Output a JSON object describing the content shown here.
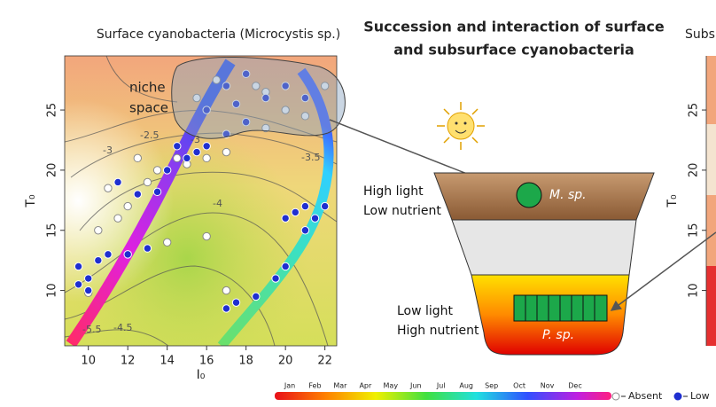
{
  "chart_data": [
    {
      "type": "scatter",
      "title": "Surface cyanobacteria (Microcystis sp.)",
      "x_label": "I₀",
      "y_label": "T₀",
      "xlim": [
        8.8,
        22.6
      ],
      "ylim": [
        5.4,
        29.5
      ],
      "xticks": [
        10,
        12,
        14,
        16,
        18,
        20,
        22
      ],
      "yticks": [
        10,
        15,
        20,
        25
      ],
      "annotations": [
        "niche",
        "space",
        "-2.5",
        "-3",
        "-3",
        "-3.5",
        "-4",
        "-4.5",
        "-5.5"
      ],
      "series": [
        {
          "name": "Absent",
          "color": "#ffffff",
          "x": [
            10,
            10.5,
            11.5,
            12,
            13,
            13.5,
            14.5,
            15,
            16,
            17,
            18,
            19,
            20,
            15.5,
            16.5,
            18.5,
            14,
            16,
            17,
            11,
            12.5,
            19,
            21,
            22
          ],
          "values": [
            9.8,
            15,
            16,
            17,
            19,
            20,
            21,
            20.5,
            21,
            21.5,
            24,
            23.5,
            25,
            26,
            27.5,
            27,
            14,
            14.5,
            10,
            18.5,
            21,
            26.5,
            24.5,
            27
          ]
        },
        {
          "name": "Low",
          "color": "#1f2fd0",
          "x": [
            9.5,
            10,
            10.5,
            11,
            12,
            13,
            12.5,
            13.5,
            14,
            15,
            15.5,
            16,
            17,
            18,
            19,
            20,
            21,
            20,
            20.5,
            21,
            21.5,
            22,
            19.5,
            18.5,
            17,
            17.5,
            20,
            21,
            16,
            17,
            18,
            14.5,
            11.5,
            9.5,
            10,
            17.5
          ],
          "values": [
            12,
            11,
            12.5,
            13,
            13,
            13.5,
            18,
            18.2,
            20,
            21,
            21.5,
            22,
            23,
            24,
            26,
            27,
            26,
            16,
            16.5,
            17,
            16,
            17,
            11,
            9.5,
            8.5,
            9,
            12,
            15,
            25,
            27,
            28,
            22,
            19,
            10.5,
            10,
            25.5
          ]
        }
      ]
    },
    {
      "type": "scatter",
      "title": "Subs",
      "y_label": "T₀",
      "ylim": [
        5.4,
        29.5
      ],
      "yticks": [
        10,
        15,
        20,
        25
      ],
      "series": []
    }
  ],
  "diagram": {
    "title": [
      "Succession and interaction of surface",
      "and subsurface cyanobacteria"
    ],
    "top_label": [
      "High light",
      "Low nutrient"
    ],
    "bottom_label": [
      "Low light",
      "High nutrient"
    ],
    "top_species": "M. sp.",
    "bottom_species": "P. sp."
  },
  "month_legend": {
    "months": [
      "Jan",
      "Feb",
      "Mar",
      "Apr",
      "May",
      "Jun",
      "Jul",
      "Aug",
      "Sep",
      "Oct",
      "Nov",
      "Dec"
    ]
  }
}
